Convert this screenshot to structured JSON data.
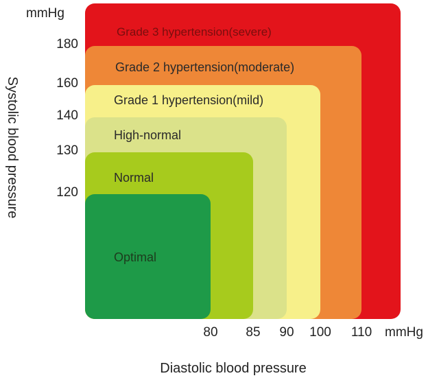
{
  "chart_data": {
    "type": "area",
    "title": "",
    "y_unit": "mmHg",
    "x_unit": "mmHg",
    "ylabel": "Systolic blood pressure",
    "xlabel": "Diastolic blood pressure",
    "y_ticks": [
      180,
      160,
      140,
      130,
      120
    ],
    "x_ticks": [
      80,
      85,
      90,
      100,
      110
    ],
    "grades": [
      {
        "name": "Grade 3 hypertension(severe)",
        "systolic_max": null,
        "diastolic_max": null,
        "color": "#e3141b",
        "text_color": "#7a0e0e"
      },
      {
        "name": "Grade 2 hypertension(moderate)",
        "systolic_max": 180,
        "diastolic_max": 110,
        "color": "#ee8737",
        "text_color": "#2a2a2a"
      },
      {
        "name": "Grade 1 hypertension(mild)",
        "systolic_max": 160,
        "diastolic_max": 100,
        "color": "#f7f08a",
        "text_color": "#2a2a2a"
      },
      {
        "name": "High-normal",
        "systolic_max": 140,
        "diastolic_max": 90,
        "color": "#dbe28a",
        "text_color": "#2a2a2a"
      },
      {
        "name": "Normal",
        "systolic_max": 130,
        "diastolic_max": 85,
        "color": "#a7cb1d",
        "text_color": "#2a2a2a"
      },
      {
        "name": "Optimal",
        "systolic_max": 120,
        "diastolic_max": 80,
        "color": "#1e9a48",
        "text_color": "#1d3b1d"
      }
    ]
  }
}
